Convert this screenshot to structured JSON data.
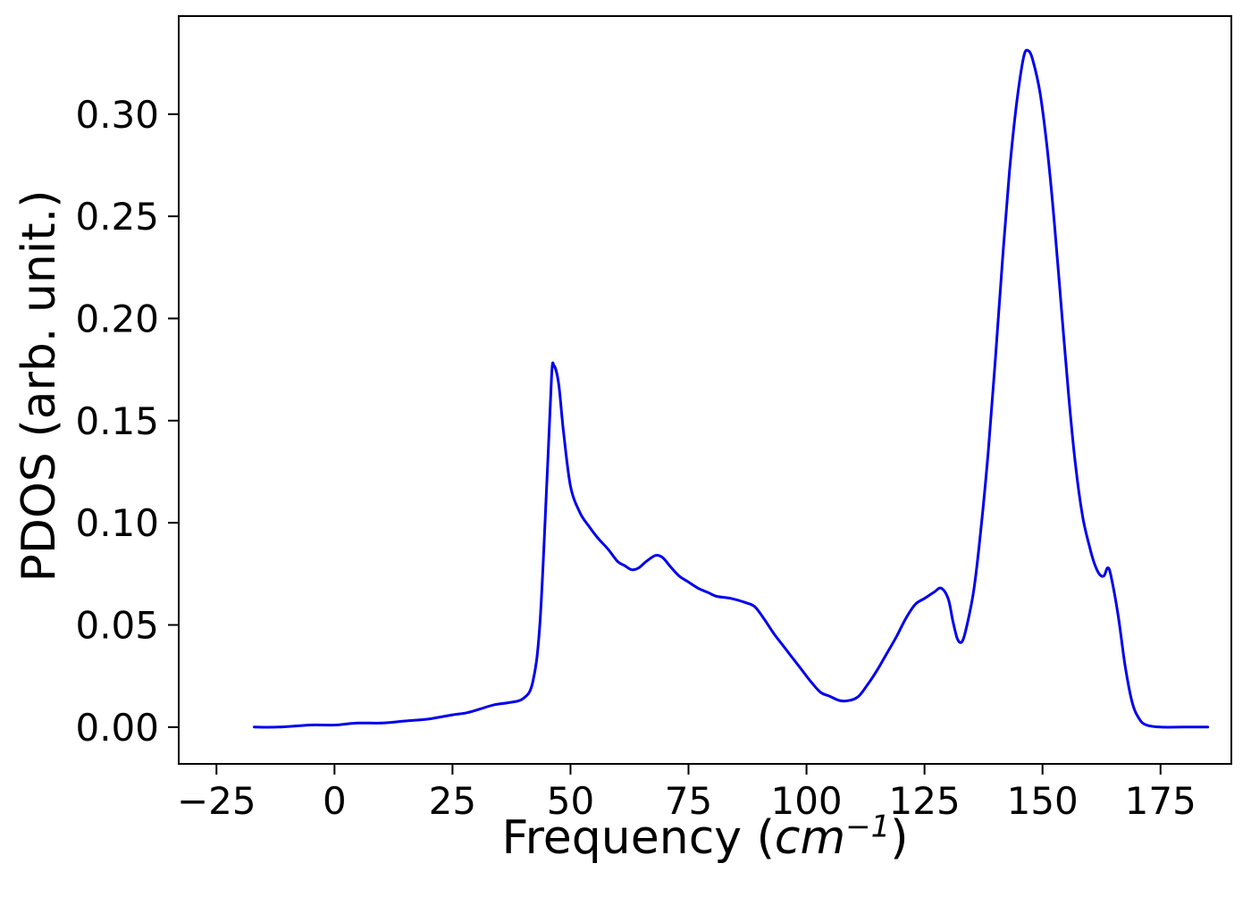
{
  "figure": {
    "background": "#ffffff",
    "frame_color": "#000000"
  },
  "chart_data": {
    "type": "line",
    "title": "",
    "ylabel": "PDOS (arb. unit.)",
    "xlabel_prefix": "Frequency (",
    "xlabel_var": "cm",
    "xlabel_sup": "−1",
    "xlabel_suffix": ")",
    "line_color": "#0000ee",
    "grid": false,
    "legend": "none",
    "xlim": [
      -33,
      190
    ],
    "ylim": [
      -0.018,
      0.348
    ],
    "xticks": [
      -25,
      0,
      25,
      50,
      75,
      100,
      125,
      150,
      175
    ],
    "xtick_labels": [
      "−25",
      "0",
      "25",
      "50",
      "75",
      "100",
      "125",
      "150",
      "175"
    ],
    "yticks": [
      0.0,
      0.05,
      0.1,
      0.15,
      0.2,
      0.25,
      0.3
    ],
    "ytick_labels": [
      "0.00",
      "0.05",
      "0.10",
      "0.15",
      "0.20",
      "0.25",
      "0.30"
    ],
    "x": [
      -17,
      -12,
      -5,
      0,
      5,
      10,
      15,
      20,
      25,
      28,
      31,
      34,
      37,
      40,
      42,
      43.5,
      45,
      46,
      46.5,
      47.5,
      48.5,
      50,
      52,
      54,
      56,
      58,
      60,
      61.5,
      63,
      64.5,
      66,
      68,
      69.5,
      71,
      73,
      75,
      77,
      79,
      81,
      84,
      87,
      89,
      91,
      93,
      95,
      97,
      99,
      101,
      103,
      105,
      107,
      109,
      111,
      113,
      115,
      117,
      119,
      121,
      123,
      125,
      127,
      128.5,
      130,
      131,
      132,
      133,
      134,
      135.5,
      137,
      138.5,
      140,
      141.5,
      143,
      144.5,
      146,
      147,
      148,
      149.5,
      151,
      152.5,
      154,
      155.5,
      157,
      158.5,
      160,
      161,
      162,
      163,
      163.8,
      164.5,
      166,
      167.5,
      169,
      170.5,
      172,
      175,
      180,
      185
    ],
    "y": [
      0.0,
      0.0,
      0.001,
      0.001,
      0.002,
      0.002,
      0.003,
      0.004,
      0.006,
      0.007,
      0.009,
      0.011,
      0.012,
      0.014,
      0.022,
      0.05,
      0.12,
      0.172,
      0.177,
      0.168,
      0.145,
      0.118,
      0.105,
      0.098,
      0.092,
      0.087,
      0.081,
      0.079,
      0.077,
      0.078,
      0.081,
      0.084,
      0.083,
      0.079,
      0.074,
      0.071,
      0.068,
      0.066,
      0.064,
      0.063,
      0.061,
      0.059,
      0.053,
      0.046,
      0.04,
      0.034,
      0.028,
      0.022,
      0.017,
      0.015,
      0.013,
      0.013,
      0.015,
      0.021,
      0.028,
      0.036,
      0.044,
      0.053,
      0.06,
      0.063,
      0.066,
      0.068,
      0.063,
      0.052,
      0.043,
      0.042,
      0.05,
      0.068,
      0.098,
      0.135,
      0.18,
      0.228,
      0.272,
      0.305,
      0.328,
      0.331,
      0.326,
      0.31,
      0.283,
      0.247,
      0.205,
      0.163,
      0.128,
      0.103,
      0.088,
      0.08,
      0.075,
      0.074,
      0.078,
      0.074,
      0.055,
      0.03,
      0.012,
      0.004,
      0.001,
      0.0,
      0.0,
      0.0
    ]
  }
}
